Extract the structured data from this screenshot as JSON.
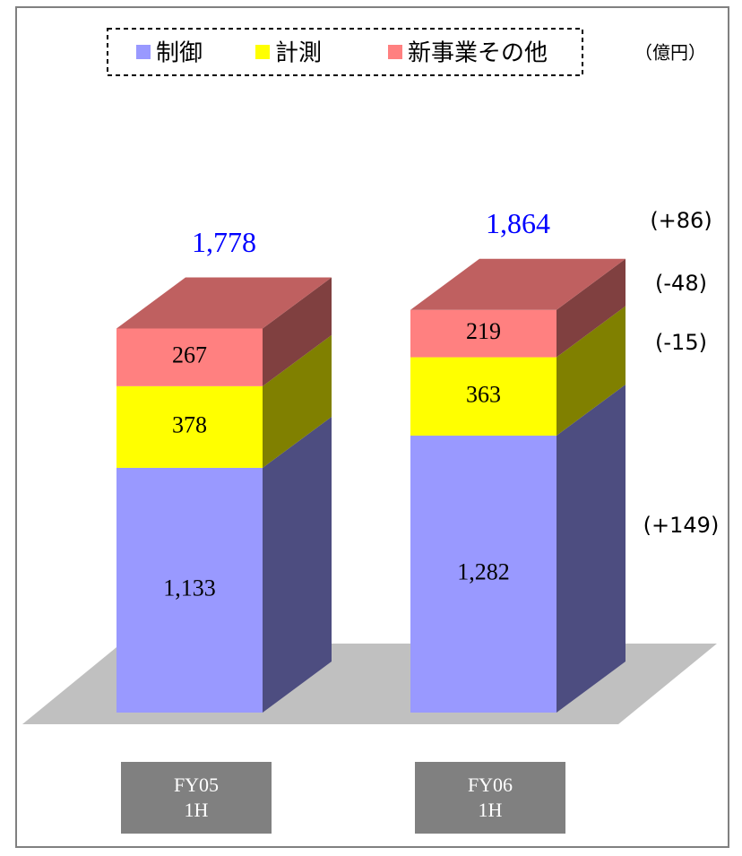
{
  "chart_data": {
    "type": "bar3d_stacked",
    "unit": "（億円）",
    "categories": [
      "FY05\n1H",
      "FY06\n1H"
    ],
    "series": [
      {
        "name": "制御",
        "color": "#9999ff",
        "values": [
          1133,
          1282
        ],
        "value_labels": [
          "1,133",
          "1,282"
        ]
      },
      {
        "name": "計測",
        "color": "#ffff00",
        "values": [
          378,
          363
        ]
      },
      {
        "name": "新事業その他",
        "color": "#ff8080",
        "values": [
          267,
          219
        ]
      }
    ],
    "totals": [
      1778,
      1864
    ],
    "total_labels": [
      "1,778",
      "1,864"
    ],
    "annotations": [
      "(+86)",
      "(-48)",
      "(-15)",
      "(+149)"
    ]
  }
}
